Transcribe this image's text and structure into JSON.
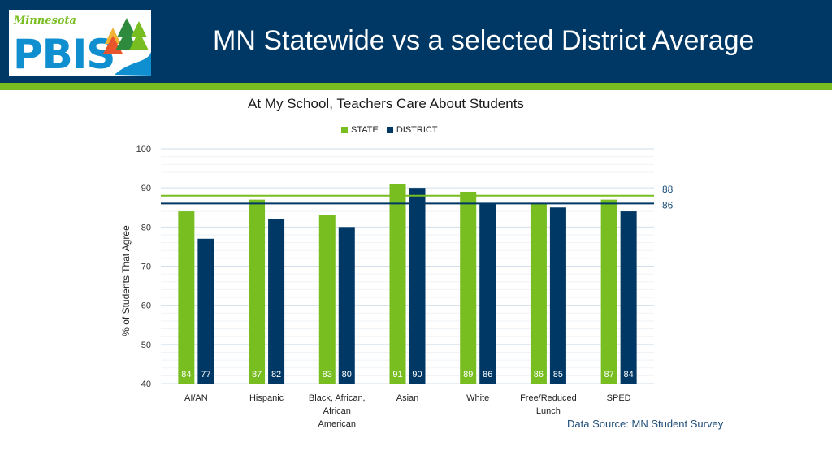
{
  "header": {
    "logo_script": "Minnesota",
    "logo_text": "PBIS",
    "title": "MN Statewide vs a selected District Average"
  },
  "colors": {
    "header_bg": "#003865",
    "accent_green": "#78be20",
    "state": "#78be20",
    "district": "#003865",
    "grid": "#d9e5ef",
    "source_text": "#1f4e79"
  },
  "footer": {
    "source": "Data Source: MN Student Survey"
  },
  "chart_data": {
    "type": "bar",
    "title": "At My School, Teachers Care About Students",
    "ylabel": "% of Students That Agree",
    "xlabel": "",
    "ylim": [
      40,
      100
    ],
    "yticks": [
      40,
      50,
      60,
      70,
      80,
      90,
      100
    ],
    "grid": true,
    "legend_position": "top",
    "categories": [
      [
        "AI/AN"
      ],
      [
        "Hispanic"
      ],
      [
        "Black, African,",
        "African",
        "American"
      ],
      [
        "Asian"
      ],
      [
        "White"
      ],
      [
        "Free/Reduced",
        "Lunch"
      ],
      [
        "SPED"
      ]
    ],
    "series": [
      {
        "name": "STATE",
        "color": "#78be20",
        "values": [
          84,
          87,
          83,
          91,
          89,
          86,
          87
        ]
      },
      {
        "name": "DISTRICT",
        "color": "#003865",
        "values": [
          77,
          82,
          80,
          90,
          86,
          85,
          84
        ]
      }
    ],
    "reference_lines": [
      {
        "value": 88,
        "label": "88",
        "color": "#78be20"
      },
      {
        "value": 86,
        "label": "86",
        "color": "#003865"
      }
    ]
  }
}
